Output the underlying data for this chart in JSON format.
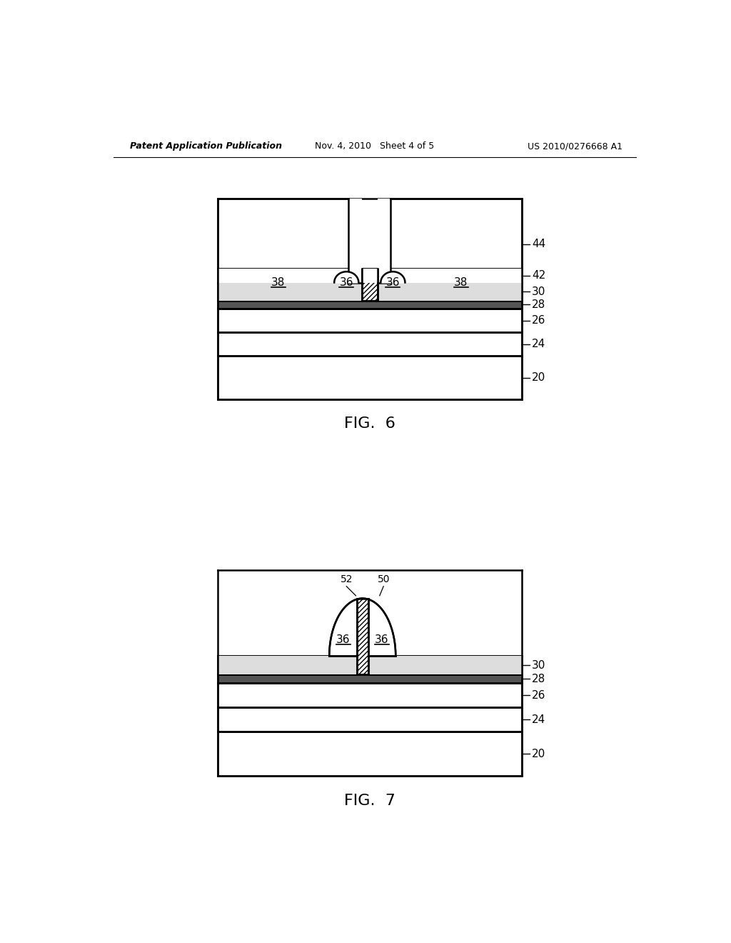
{
  "bg_color": "#ffffff",
  "line_color": "#000000",
  "header": {
    "left": "Patent Application Publication",
    "center": "Nov. 4, 2010   Sheet 4 of 5",
    "right": "US 2010/0276668 A1"
  }
}
